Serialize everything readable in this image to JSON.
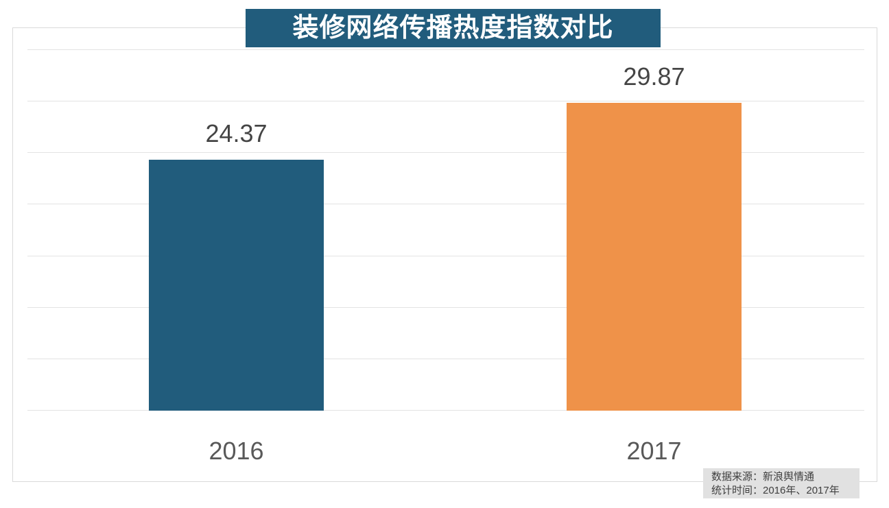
{
  "title": {
    "text": "装修网络传播热度指数对比"
  },
  "chart_data": {
    "type": "bar",
    "title": "装修网络传播热度指数对比",
    "categories": [
      "2016",
      "2017"
    ],
    "values": [
      24.37,
      29.87
    ],
    "value_labels": [
      "24.37",
      "29.87"
    ],
    "bar_colors": [
      "#215C7C",
      "#EF9249"
    ],
    "xlabel": "",
    "ylabel": "",
    "ylim": [
      0,
      35
    ],
    "y_grid_step": 5,
    "grid": true,
    "y_axis_labels_visible": false,
    "legend": "none"
  },
  "source_note": {
    "line1": "数据来源：新浪舆情通",
    "line2": "统计时间：2016年、2017年"
  },
  "colors": {
    "title_bg": "#215C7C",
    "title_text": "#FFFFFF",
    "bar_2016": "#215C7C",
    "bar_2017": "#EF9249",
    "gridline": "#E3E3E3",
    "plot_border": "#D9D9D9",
    "value_label_text": "#454545",
    "category_label_text": "#595959",
    "source_bg": "#E1E1E1",
    "source_text": "#3F3F3F",
    "page_bg": "#FFFFFF"
  }
}
